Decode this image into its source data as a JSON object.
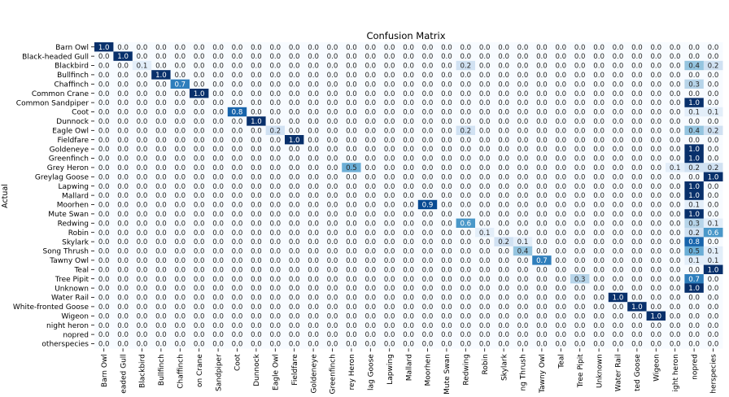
{
  "chart_data": {
    "type": "heatmap",
    "title": "Confusion Matrix",
    "ylabel": "Actual",
    "xlabel": "",
    "row_labels": [
      "Barn Owl",
      "Black-headed Gull",
      "Blackbird",
      "Bullfinch",
      "Chaffinch",
      "Common Crane",
      "Common Sandpiper",
      "Coot",
      "Dunnock",
      "Eagle Owl",
      "Fieldfare",
      "Goldeneye",
      "Greenfinch",
      "Grey Heron",
      "Greylag Goose",
      "Lapwing",
      "Mallard",
      "Moorhen",
      "Mute Swan",
      "Redwing",
      "Robin",
      "Skylark",
      "Song Thrush",
      "Tawny Owl",
      "Teal",
      "Tree Pipit",
      "Unknown",
      "Water Rail",
      "White-fronted Goose",
      "Wigeon",
      "night heron",
      "nopred",
      "otherspecies"
    ],
    "col_tick_labels": [
      "Barn Owl",
      "eaded Gull",
      "Blackbird",
      "Bullfinch",
      "Chaffinch",
      "on Crane",
      "Sandpiper",
      "Coot",
      "Dunnock",
      "Eagle Owl",
      "Fieldfare",
      "Goldeneye",
      "Greenfinch",
      "rey Heron",
      "lag Goose",
      "Lapwing",
      "Mallard",
      "Moorhen",
      "Mute Swan",
      "Redwing",
      "Robin",
      "Skylark",
      "ng Thrush",
      "Tawny Owl",
      "Teal",
      "Tree Pipit",
      "Unknown",
      "Water Rail",
      "ted Goose",
      "Wigeon",
      "ight heron",
      "nopred",
      "herspecies"
    ],
    "value_range": [
      0,
      1
    ],
    "colormap": "Blues",
    "cell_values": [
      [
        1.0,
        0.0,
        0.0,
        0.0,
        0.0,
        0.0,
        0.0,
        0.0,
        0.0,
        0.0,
        0.0,
        0.0,
        0.0,
        0.0,
        0.0,
        0.0,
        0.0,
        0.0,
        0.0,
        0.0,
        0.0,
        0.0,
        0.0,
        0.0,
        0.0,
        0.0,
        0.0,
        0.0,
        0.0,
        0.0,
        0.0,
        0.0,
        0.0
      ],
      [
        0.0,
        1.0,
        0.0,
        0.0,
        0.0,
        0.0,
        0.0,
        0.0,
        0.0,
        0.0,
        0.0,
        0.0,
        0.0,
        0.0,
        0.0,
        0.0,
        0.0,
        0.0,
        0.0,
        0.0,
        0.0,
        0.0,
        0.0,
        0.0,
        0.0,
        0.0,
        0.0,
        0.0,
        0.0,
        0.0,
        0.0,
        0.0,
        0.0
      ],
      [
        0.0,
        0.0,
        0.1,
        0.0,
        0.0,
        0.0,
        0.0,
        0.0,
        0.0,
        0.0,
        0.0,
        0.0,
        0.0,
        0.0,
        0.0,
        0.0,
        0.0,
        0.0,
        0.0,
        0.2,
        0.0,
        0.0,
        0.0,
        0.0,
        0.0,
        0.0,
        0.0,
        0.0,
        0.0,
        0.0,
        0.0,
        0.4,
        0.2
      ],
      [
        0.0,
        0.0,
        0.0,
        1.0,
        0.0,
        0.0,
        0.0,
        0.0,
        0.0,
        0.0,
        0.0,
        0.0,
        0.0,
        0.0,
        0.0,
        0.0,
        0.0,
        0.0,
        0.0,
        0.0,
        0.0,
        0.0,
        0.0,
        0.0,
        0.0,
        0.0,
        0.0,
        0.0,
        0.0,
        0.0,
        0.0,
        0.0,
        0.0
      ],
      [
        0.0,
        0.0,
        0.0,
        0.0,
        0.7,
        0.0,
        0.0,
        0.0,
        0.0,
        0.0,
        0.0,
        0.0,
        0.0,
        0.0,
        0.0,
        0.0,
        0.0,
        0.0,
        0.0,
        0.0,
        0.0,
        0.0,
        0.0,
        0.0,
        0.0,
        0.0,
        0.0,
        0.0,
        0.0,
        0.0,
        0.0,
        0.3,
        0.0
      ],
      [
        0.0,
        0.0,
        0.0,
        0.0,
        0.0,
        1.0,
        0.0,
        0.0,
        0.0,
        0.0,
        0.0,
        0.0,
        0.0,
        0.0,
        0.0,
        0.0,
        0.0,
        0.0,
        0.0,
        0.0,
        0.0,
        0.0,
        0.0,
        0.0,
        0.0,
        0.0,
        0.0,
        0.0,
        0.0,
        0.0,
        0.0,
        0.0,
        0.0
      ],
      [
        0.0,
        0.0,
        0.0,
        0.0,
        0.0,
        0.0,
        0.0,
        0.0,
        0.0,
        0.0,
        0.0,
        0.0,
        0.0,
        0.0,
        0.0,
        0.0,
        0.0,
        0.0,
        0.0,
        0.0,
        0.0,
        0.0,
        0.0,
        0.0,
        0.0,
        0.0,
        0.0,
        0.0,
        0.0,
        0.0,
        0.0,
        1.0,
        0.0
      ],
      [
        0.0,
        0.0,
        0.0,
        0.0,
        0.0,
        0.0,
        0.0,
        0.8,
        0.0,
        0.0,
        0.0,
        0.0,
        0.0,
        0.0,
        0.0,
        0.0,
        0.0,
        0.0,
        0.0,
        0.0,
        0.0,
        0.0,
        0.0,
        0.0,
        0.0,
        0.0,
        0.0,
        0.0,
        0.0,
        0.0,
        0.0,
        0.1,
        0.1
      ],
      [
        0.0,
        0.0,
        0.0,
        0.0,
        0.0,
        0.0,
        0.0,
        0.0,
        1.0,
        0.0,
        0.0,
        0.0,
        0.0,
        0.0,
        0.0,
        0.0,
        0.0,
        0.0,
        0.0,
        0.0,
        0.0,
        0.0,
        0.0,
        0.0,
        0.0,
        0.0,
        0.0,
        0.0,
        0.0,
        0.0,
        0.0,
        0.0,
        0.0
      ],
      [
        0.0,
        0.0,
        0.0,
        0.0,
        0.0,
        0.0,
        0.0,
        0.0,
        0.0,
        0.2,
        0.0,
        0.0,
        0.0,
        0.0,
        0.0,
        0.0,
        0.0,
        0.0,
        0.0,
        0.2,
        0.0,
        0.0,
        0.0,
        0.0,
        0.0,
        0.0,
        0.0,
        0.0,
        0.0,
        0.0,
        0.0,
        0.4,
        0.2
      ],
      [
        0.0,
        0.0,
        0.0,
        0.0,
        0.0,
        0.0,
        0.0,
        0.0,
        0.0,
        0.0,
        1.0,
        0.0,
        0.0,
        0.0,
        0.0,
        0.0,
        0.0,
        0.0,
        0.0,
        0.0,
        0.0,
        0.0,
        0.0,
        0.0,
        0.0,
        0.0,
        0.0,
        0.0,
        0.0,
        0.0,
        0.0,
        0.0,
        0.0
      ],
      [
        0.0,
        0.0,
        0.0,
        0.0,
        0.0,
        0.0,
        0.0,
        0.0,
        0.0,
        0.0,
        0.0,
        0.0,
        0.0,
        0.0,
        0.0,
        0.0,
        0.0,
        0.0,
        0.0,
        0.0,
        0.0,
        0.0,
        0.0,
        0.0,
        0.0,
        0.0,
        0.0,
        0.0,
        0.0,
        0.0,
        0.0,
        1.0,
        0.0
      ],
      [
        0.0,
        0.0,
        0.0,
        0.0,
        0.0,
        0.0,
        0.0,
        0.0,
        0.0,
        0.0,
        0.0,
        0.0,
        0.0,
        0.0,
        0.0,
        0.0,
        0.0,
        0.0,
        0.0,
        0.0,
        0.0,
        0.0,
        0.0,
        0.0,
        0.0,
        0.0,
        0.0,
        0.0,
        0.0,
        0.0,
        0.0,
        1.0,
        0.0
      ],
      [
        0.0,
        0.0,
        0.0,
        0.0,
        0.0,
        0.0,
        0.0,
        0.0,
        0.0,
        0.0,
        0.0,
        0.0,
        0.0,
        0.5,
        0.0,
        0.0,
        0.0,
        0.0,
        0.0,
        0.0,
        0.0,
        0.0,
        0.0,
        0.0,
        0.0,
        0.0,
        0.0,
        0.0,
        0.0,
        0.0,
        0.1,
        0.2,
        0.2
      ],
      [
        0.0,
        0.0,
        0.0,
        0.0,
        0.0,
        0.0,
        0.0,
        0.0,
        0.0,
        0.0,
        0.0,
        0.0,
        0.0,
        0.0,
        0.0,
        0.0,
        0.0,
        0.0,
        0.0,
        0.0,
        0.0,
        0.0,
        0.0,
        0.0,
        0.0,
        0.0,
        0.0,
        0.0,
        0.0,
        0.0,
        0.0,
        0.0,
        1.0
      ],
      [
        0.0,
        0.0,
        0.0,
        0.0,
        0.0,
        0.0,
        0.0,
        0.0,
        0.0,
        0.0,
        0.0,
        0.0,
        0.0,
        0.0,
        0.0,
        0.0,
        0.0,
        0.0,
        0.0,
        0.0,
        0.0,
        0.0,
        0.0,
        0.0,
        0.0,
        0.0,
        0.0,
        0.0,
        0.0,
        0.0,
        0.0,
        1.0,
        0.0
      ],
      [
        0.0,
        0.0,
        0.0,
        0.0,
        0.0,
        0.0,
        0.0,
        0.0,
        0.0,
        0.0,
        0.0,
        0.0,
        0.0,
        0.0,
        0.0,
        0.0,
        0.0,
        0.0,
        0.0,
        0.0,
        0.0,
        0.0,
        0.0,
        0.0,
        0.0,
        0.0,
        0.0,
        0.0,
        0.0,
        0.0,
        0.0,
        1.0,
        0.0
      ],
      [
        0.0,
        0.0,
        0.0,
        0.0,
        0.0,
        0.0,
        0.0,
        0.0,
        0.0,
        0.0,
        0.0,
        0.0,
        0.0,
        0.0,
        0.0,
        0.0,
        0.0,
        0.9,
        0.0,
        0.0,
        0.0,
        0.0,
        0.0,
        0.0,
        0.0,
        0.0,
        0.0,
        0.0,
        0.0,
        0.0,
        0.0,
        0.1,
        0.0
      ],
      [
        0.0,
        0.0,
        0.0,
        0.0,
        0.0,
        0.0,
        0.0,
        0.0,
        0.0,
        0.0,
        0.0,
        0.0,
        0.0,
        0.0,
        0.0,
        0.0,
        0.0,
        0.0,
        0.0,
        0.0,
        0.0,
        0.0,
        0.0,
        0.0,
        0.0,
        0.0,
        0.0,
        0.0,
        0.0,
        0.0,
        0.0,
        1.0,
        0.0
      ],
      [
        0.0,
        0.0,
        0.0,
        0.0,
        0.0,
        0.0,
        0.0,
        0.0,
        0.0,
        0.0,
        0.0,
        0.0,
        0.0,
        0.0,
        0.0,
        0.0,
        0.0,
        0.0,
        0.0,
        0.6,
        0.0,
        0.0,
        0.0,
        0.0,
        0.0,
        0.0,
        0.0,
        0.0,
        0.0,
        0.0,
        0.0,
        0.3,
        0.1
      ],
      [
        0.0,
        0.0,
        0.0,
        0.0,
        0.0,
        0.0,
        0.0,
        0.0,
        0.0,
        0.0,
        0.0,
        0.0,
        0.0,
        0.0,
        0.0,
        0.0,
        0.0,
        0.0,
        0.0,
        0.0,
        0.1,
        0.0,
        0.0,
        0.0,
        0.0,
        0.0,
        0.0,
        0.0,
        0.0,
        0.0,
        0.0,
        0.2,
        0.6
      ],
      [
        0.0,
        0.0,
        0.0,
        0.0,
        0.0,
        0.0,
        0.0,
        0.0,
        0.0,
        0.0,
        0.0,
        0.0,
        0.0,
        0.0,
        0.0,
        0.0,
        0.0,
        0.0,
        0.0,
        0.0,
        0.0,
        0.2,
        0.1,
        0.0,
        0.0,
        0.0,
        0.0,
        0.0,
        0.0,
        0.0,
        0.0,
        0.8,
        0.0
      ],
      [
        0.0,
        0.0,
        0.0,
        0.0,
        0.0,
        0.0,
        0.0,
        0.0,
        0.0,
        0.0,
        0.0,
        0.0,
        0.0,
        0.0,
        0.0,
        0.0,
        0.0,
        0.0,
        0.0,
        0.0,
        0.0,
        0.0,
        0.4,
        0.0,
        0.0,
        0.0,
        0.0,
        0.0,
        0.0,
        0.0,
        0.0,
        0.5,
        0.1
      ],
      [
        0.0,
        0.0,
        0.0,
        0.0,
        0.0,
        0.0,
        0.0,
        0.0,
        0.0,
        0.0,
        0.0,
        0.0,
        0.0,
        0.0,
        0.0,
        0.0,
        0.0,
        0.0,
        0.0,
        0.0,
        0.0,
        0.0,
        0.0,
        0.7,
        0.0,
        0.0,
        0.0,
        0.0,
        0.0,
        0.0,
        0.0,
        0.1,
        0.1
      ],
      [
        0.0,
        0.0,
        0.0,
        0.0,
        0.0,
        0.0,
        0.0,
        0.0,
        0.0,
        0.0,
        0.0,
        0.0,
        0.0,
        0.0,
        0.0,
        0.0,
        0.0,
        0.0,
        0.0,
        0.0,
        0.0,
        0.0,
        0.0,
        0.0,
        0.0,
        0.0,
        0.0,
        0.0,
        0.0,
        0.0,
        0.0,
        0.0,
        1.0
      ],
      [
        0.0,
        0.0,
        0.0,
        0.0,
        0.0,
        0.0,
        0.0,
        0.0,
        0.0,
        0.0,
        0.0,
        0.0,
        0.0,
        0.0,
        0.0,
        0.0,
        0.0,
        0.0,
        0.0,
        0.0,
        0.0,
        0.0,
        0.0,
        0.0,
        0.0,
        0.3,
        0.0,
        0.0,
        0.0,
        0.0,
        0.0,
        0.7,
        0.0
      ],
      [
        0.0,
        0.0,
        0.0,
        0.0,
        0.0,
        0.0,
        0.0,
        0.0,
        0.0,
        0.0,
        0.0,
        0.0,
        0.0,
        0.0,
        0.0,
        0.0,
        0.0,
        0.0,
        0.0,
        0.0,
        0.0,
        0.0,
        0.0,
        0.0,
        0.0,
        0.0,
        0.0,
        0.0,
        0.0,
        0.0,
        0.0,
        1.0,
        0.0
      ],
      [
        0.0,
        0.0,
        0.0,
        0.0,
        0.0,
        0.0,
        0.0,
        0.0,
        0.0,
        0.0,
        0.0,
        0.0,
        0.0,
        0.0,
        0.0,
        0.0,
        0.0,
        0.0,
        0.0,
        0.0,
        0.0,
        0.0,
        0.0,
        0.0,
        0.0,
        0.0,
        0.0,
        1.0,
        0.0,
        0.0,
        0.0,
        0.0,
        0.0
      ],
      [
        0.0,
        0.0,
        0.0,
        0.0,
        0.0,
        0.0,
        0.0,
        0.0,
        0.0,
        0.0,
        0.0,
        0.0,
        0.0,
        0.0,
        0.0,
        0.0,
        0.0,
        0.0,
        0.0,
        0.0,
        0.0,
        0.0,
        0.0,
        0.0,
        0.0,
        0.0,
        0.0,
        0.0,
        1.0,
        0.0,
        0.0,
        0.0,
        0.0
      ],
      [
        0.0,
        0.0,
        0.0,
        0.0,
        0.0,
        0.0,
        0.0,
        0.0,
        0.0,
        0.0,
        0.0,
        0.0,
        0.0,
        0.0,
        0.0,
        0.0,
        0.0,
        0.0,
        0.0,
        0.0,
        0.0,
        0.0,
        0.0,
        0.0,
        0.0,
        0.0,
        0.0,
        0.0,
        0.0,
        1.0,
        0.0,
        0.0,
        0.0
      ],
      [
        0.0,
        0.0,
        0.0,
        0.0,
        0.0,
        0.0,
        0.0,
        0.0,
        0.0,
        0.0,
        0.0,
        0.0,
        0.0,
        0.0,
        0.0,
        0.0,
        0.0,
        0.0,
        0.0,
        0.0,
        0.0,
        0.0,
        0.0,
        0.0,
        0.0,
        0.0,
        0.0,
        0.0,
        0.0,
        0.0,
        0.0,
        0.0,
        0.0
      ],
      [
        0.0,
        0.0,
        0.0,
        0.0,
        0.0,
        0.0,
        0.0,
        0.0,
        0.0,
        0.0,
        0.0,
        0.0,
        0.0,
        0.0,
        0.0,
        0.0,
        0.0,
        0.0,
        0.0,
        0.0,
        0.0,
        0.0,
        0.0,
        0.0,
        0.0,
        0.0,
        0.0,
        0.0,
        0.0,
        0.0,
        0.0,
        0.0,
        0.0
      ],
      [
        0.0,
        0.0,
        0.0,
        0.0,
        0.0,
        0.0,
        0.0,
        0.0,
        0.0,
        0.0,
        0.0,
        0.0,
        0.0,
        0.0,
        0.0,
        0.0,
        0.0,
        0.0,
        0.0,
        0.0,
        0.0,
        0.0,
        0.0,
        0.0,
        0.0,
        0.0,
        0.0,
        0.0,
        0.0,
        0.0,
        0.0,
        0.0,
        0.0
      ]
    ],
    "grid": false,
    "colorbar": false
  }
}
